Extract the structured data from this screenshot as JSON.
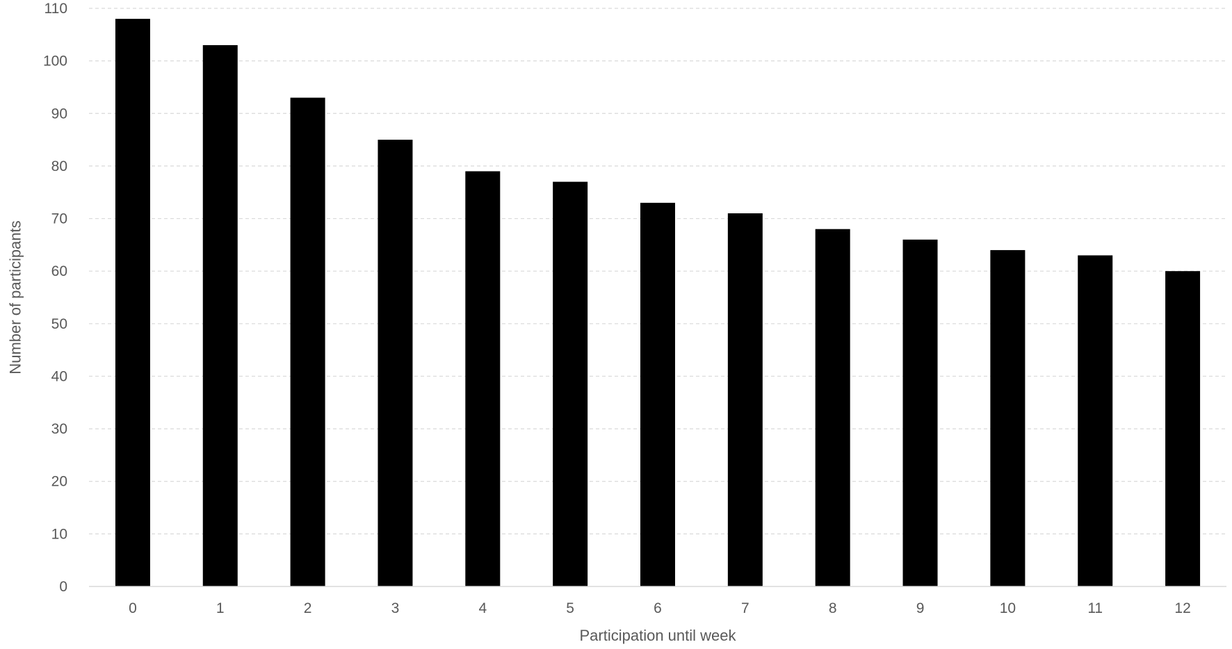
{
  "chart_data": {
    "type": "bar",
    "categories": [
      "0",
      "1",
      "2",
      "3",
      "4",
      "5",
      "6",
      "7",
      "8",
      "9",
      "10",
      "11",
      "12"
    ],
    "values": [
      108,
      103,
      93,
      85,
      79,
      77,
      73,
      71,
      68,
      66,
      64,
      63,
      60
    ],
    "xlabel": "Participation until week",
    "ylabel": "Number of participants",
    "ylim": [
      0,
      110
    ],
    "yticks": [
      0,
      10,
      20,
      30,
      40,
      50,
      60,
      70,
      80,
      90,
      100,
      110
    ],
    "grid": true,
    "legend": "none",
    "colors": {
      "bar": "#000000",
      "grid": "#d9d9d9",
      "axis": "#d9d9d9",
      "text": "#595959"
    }
  }
}
